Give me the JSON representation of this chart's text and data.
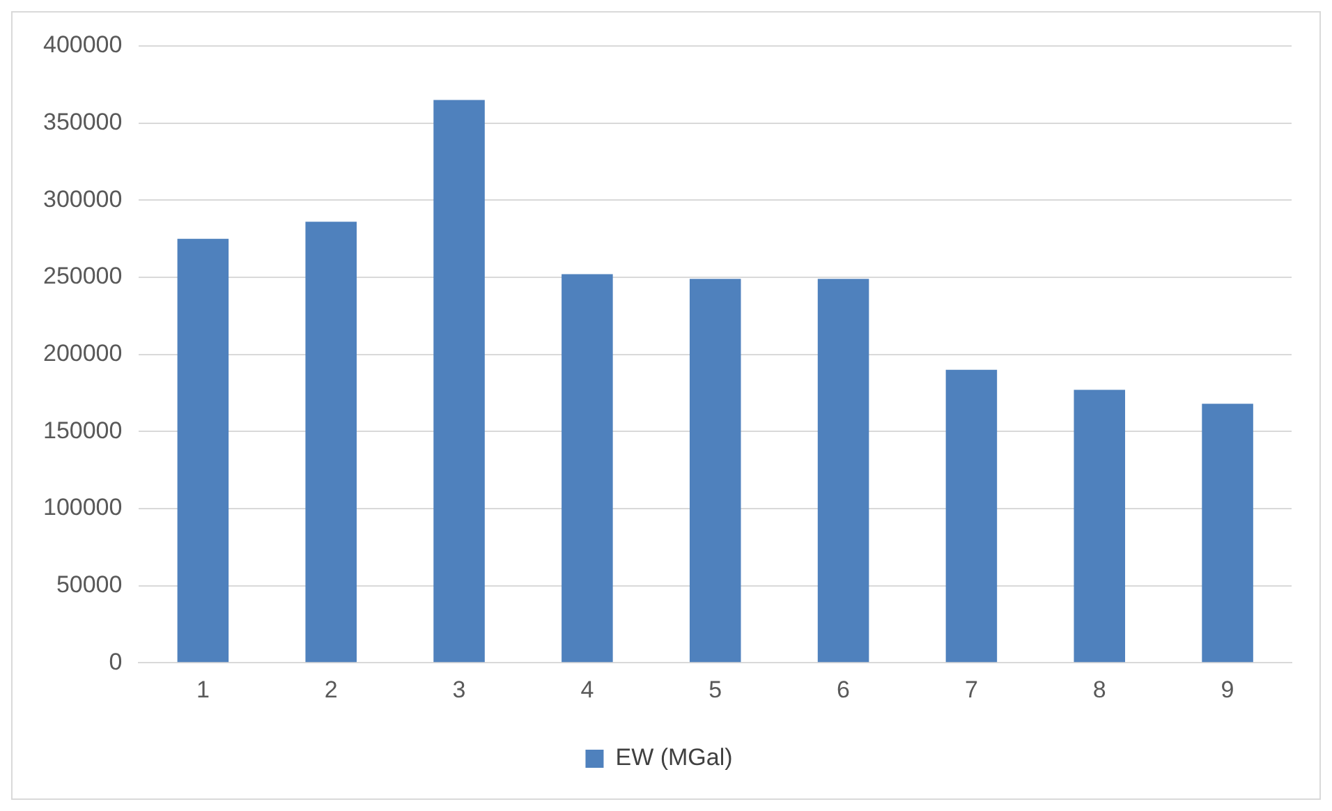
{
  "chart_data": {
    "type": "bar",
    "categories": [
      "1",
      "2",
      "3",
      "4",
      "5",
      "6",
      "7",
      "8",
      "9"
    ],
    "series": [
      {
        "name": "EW (MGal)",
        "color": "#4f81bd",
        "values": [
          275000,
          286000,
          365000,
          252000,
          249000,
          249000,
          190000,
          177000,
          168000
        ]
      }
    ],
    "ylim": [
      0,
      400000
    ],
    "yticks": [
      0,
      50000,
      100000,
      150000,
      200000,
      250000,
      300000,
      350000,
      400000
    ],
    "grid": "y",
    "legend": "bottom"
  }
}
